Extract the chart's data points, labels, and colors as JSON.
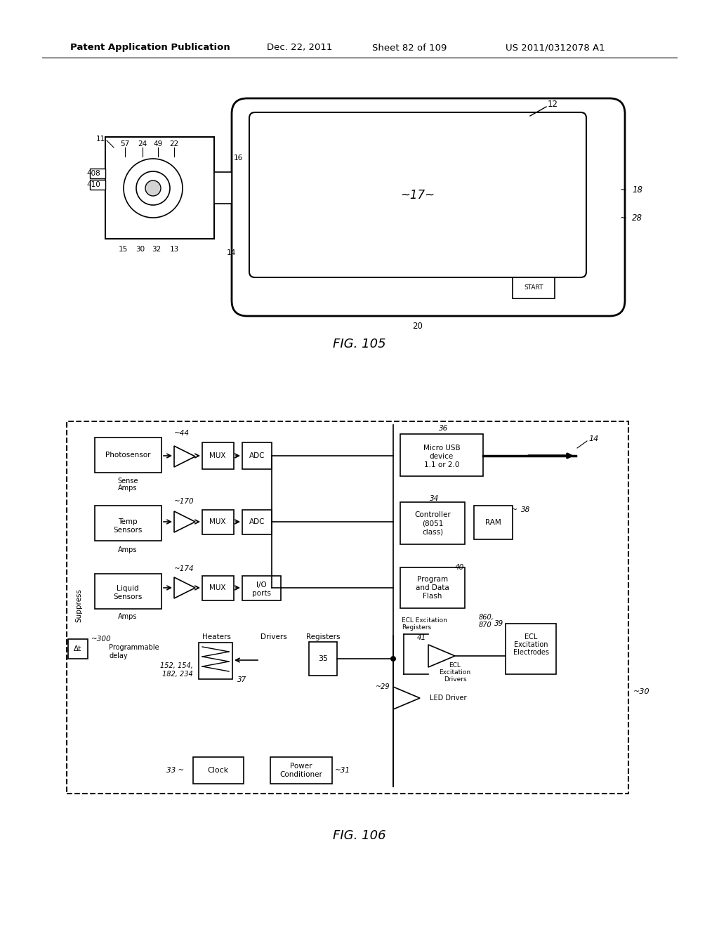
{
  "bg_color": "#ffffff",
  "header_text": "Patent Application Publication",
  "header_date": "Dec. 22, 2011",
  "header_sheet": "Sheet 82 of 109",
  "header_patent": "US 2011/0312078 A1",
  "fig105_caption": "FIG. 105",
  "fig106_caption": "FIG. 106"
}
